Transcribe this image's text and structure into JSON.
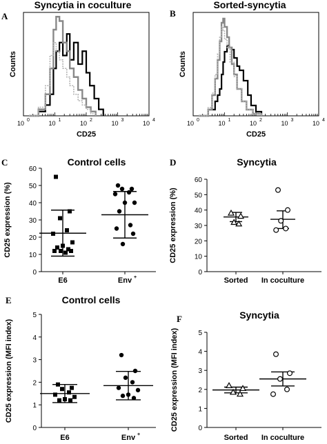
{
  "panels": {
    "A": {
      "letter": "A",
      "title": "Syncytia in coculture"
    },
    "B": {
      "letter": "B",
      "title": "Sorted-syncytia"
    },
    "C": {
      "letter": "C",
      "title": "Control cells"
    },
    "D": {
      "letter": "D",
      "title": "Syncytia"
    },
    "E": {
      "letter": "E",
      "title": "Control cells"
    },
    "F": {
      "letter": "F",
      "title": "Syncytia"
    }
  },
  "chart_data": [
    {
      "id": "A",
      "type": "line",
      "title": "Syncytia in coculture",
      "xlabel": "CD25",
      "ylabel": "Counts",
      "xscale": "log",
      "xlim": [
        1,
        10000
      ],
      "xticks": [
        "10",
        "10",
        "10",
        "10",
        "10"
      ],
      "xtick_exponents": [
        "0",
        "1",
        "2",
        "3",
        "4"
      ],
      "series": [
        {
          "color": "#000000",
          "x": [
            1.5,
            3,
            5,
            7,
            9,
            11,
            14,
            18,
            24,
            30,
            40,
            55,
            75,
            100,
            130,
            180,
            250,
            350
          ],
          "y": [
            0,
            2,
            5,
            10,
            22,
            30,
            34,
            28,
            38,
            26,
            34,
            24,
            30,
            20,
            14,
            8,
            3,
            0
          ]
        },
        {
          "color": "#888888",
          "x": [
            1.5,
            3,
            5,
            7,
            9,
            11,
            14,
            18,
            24,
            30,
            40,
            55,
            75,
            100,
            140,
            200
          ],
          "y": [
            0,
            3,
            10,
            22,
            40,
            46,
            44,
            34,
            30,
            22,
            18,
            12,
            8,
            4,
            2,
            0
          ]
        },
        {
          "color": "#b0b0b0",
          "dashed": true,
          "x": [
            1.5,
            3,
            5,
            7,
            9,
            11,
            14,
            18,
            24,
            30,
            40,
            55,
            75,
            100,
            140,
            200
          ],
          "y": [
            0,
            4,
            14,
            28,
            34,
            30,
            26,
            22,
            18,
            14,
            10,
            7,
            5,
            3,
            1,
            0
          ]
        }
      ]
    },
    {
      "id": "B",
      "type": "line",
      "title": "Sorted-syncytia",
      "xlabel": "CD25",
      "ylabel": "Counts",
      "xscale": "log",
      "xlim": [
        1,
        10000
      ],
      "xticks": [
        "10",
        "10",
        "10",
        "10",
        "10"
      ],
      "xtick_exponents": [
        "0",
        "1",
        "2",
        "3",
        "4"
      ],
      "series": [
        {
          "color": "#000000",
          "x": [
            1.5,
            3,
            5,
            6,
            7,
            8,
            9,
            10,
            12,
            14,
            17,
            20,
            25,
            30,
            40,
            55,
            70,
            100,
            150
          ],
          "y": [
            0,
            6,
            14,
            20,
            26,
            40,
            52,
            62,
            68,
            66,
            64,
            56,
            48,
            44,
            34,
            20,
            10,
            4,
            0
          ]
        },
        {
          "color": "#888888",
          "x": [
            1.5,
            3,
            4,
            5,
            6,
            7,
            8,
            9,
            10,
            12,
            14,
            17,
            20,
            25,
            35,
            50,
            80,
            150
          ],
          "y": [
            0,
            6,
            20,
            36,
            54,
            72,
            90,
            94,
            86,
            76,
            66,
            50,
            40,
            26,
            14,
            6,
            2,
            0
          ]
        },
        {
          "color": "#b0b0b0",
          "dashed": true,
          "x": [
            1.5,
            3,
            4,
            5,
            6,
            7,
            8,
            9,
            10,
            12,
            15,
            20,
            25,
            35,
            50,
            80,
            150
          ],
          "y": [
            0,
            8,
            22,
            40,
            60,
            76,
            86,
            82,
            74,
            66,
            52,
            38,
            26,
            14,
            6,
            2,
            0
          ]
        }
      ]
    },
    {
      "id": "C",
      "type": "scatter",
      "title": "Control cells",
      "ylabel": "CD25 expression (%)",
      "ylim": [
        0,
        60
      ],
      "yticks": [
        0,
        10,
        20,
        30,
        40,
        50,
        60
      ],
      "categories": [
        "E6",
        "Env"
      ],
      "category_sup": [
        "",
        "+"
      ],
      "marker": [
        "square",
        "circle"
      ],
      "points": [
        [
          55,
          35,
          31,
          24,
          22,
          17,
          15,
          14,
          13,
          12,
          12,
          12,
          11
        ],
        [
          50,
          48,
          48,
          46,
          45,
          40,
          40,
          35,
          27,
          25,
          22,
          16
        ]
      ],
      "mean": [
        22.3,
        33
      ],
      "sd_low": [
        9,
        19.5
      ],
      "sd_high": [
        35.7,
        46.5
      ]
    },
    {
      "id": "D",
      "type": "scatter",
      "title": "Syncytia",
      "ylabel": "CD25 expression (%)",
      "ylim": [
        0,
        60
      ],
      "yticks": [
        0,
        10,
        20,
        30,
        40,
        50,
        60
      ],
      "categories": [
        "Sorted",
        "In coculture"
      ],
      "category_sup": [
        "",
        ""
      ],
      "marker": [
        "triangle",
        "open-circle"
      ],
      "points": [
        [
          38,
          36,
          32,
          31
        ],
        [
          53,
          40,
          33,
          28,
          27
        ]
      ],
      "mean": [
        35.5,
        34
      ],
      "sd_low": [
        32.5,
        28
      ],
      "sd_high": [
        38.5,
        39.5
      ]
    },
    {
      "id": "E",
      "type": "scatter",
      "title": "Control cells",
      "ylabel": "CD25 expression (MFI index)",
      "ylim": [
        0,
        5
      ],
      "yticks": [
        0,
        1,
        2,
        3,
        4,
        5
      ],
      "categories": [
        "E6",
        "Env"
      ],
      "category_sup": [
        "",
        "+"
      ],
      "marker": [
        "square",
        "circle"
      ],
      "points": [
        [
          1.9,
          1.75,
          1.7,
          1.55,
          1.45,
          1.35,
          1.25,
          1.2,
          1.2
        ],
        [
          3.2,
          2.5,
          2.2,
          2.0,
          1.75,
          1.65,
          1.45,
          1.4,
          1.3
        ]
      ],
      "mean": [
        1.5,
        1.85
      ],
      "sd_low": [
        1.1,
        1.22
      ],
      "sd_high": [
        1.9,
        2.48
      ]
    },
    {
      "id": "F",
      "type": "scatter",
      "title": "Syncytia",
      "ylabel": "CD25 expression (MFI index)",
      "ylim": [
        0,
        5
      ],
      "yticks": [
        0,
        1,
        2,
        3,
        4,
        5
      ],
      "categories": [
        "Sorted",
        "In coculture"
      ],
      "category_sup": [
        "",
        ""
      ],
      "marker": [
        "triangle",
        "open-circle"
      ],
      "points": [
        [
          2.2,
          2.05,
          1.85,
          1.75
        ],
        [
          3.85,
          2.85,
          2.55,
          2.0,
          1.75
        ]
      ],
      "mean": [
        1.97,
        2.55
      ],
      "sd_low": [
        1.82,
        2.18
      ],
      "sd_high": [
        2.12,
        2.92
      ]
    }
  ]
}
